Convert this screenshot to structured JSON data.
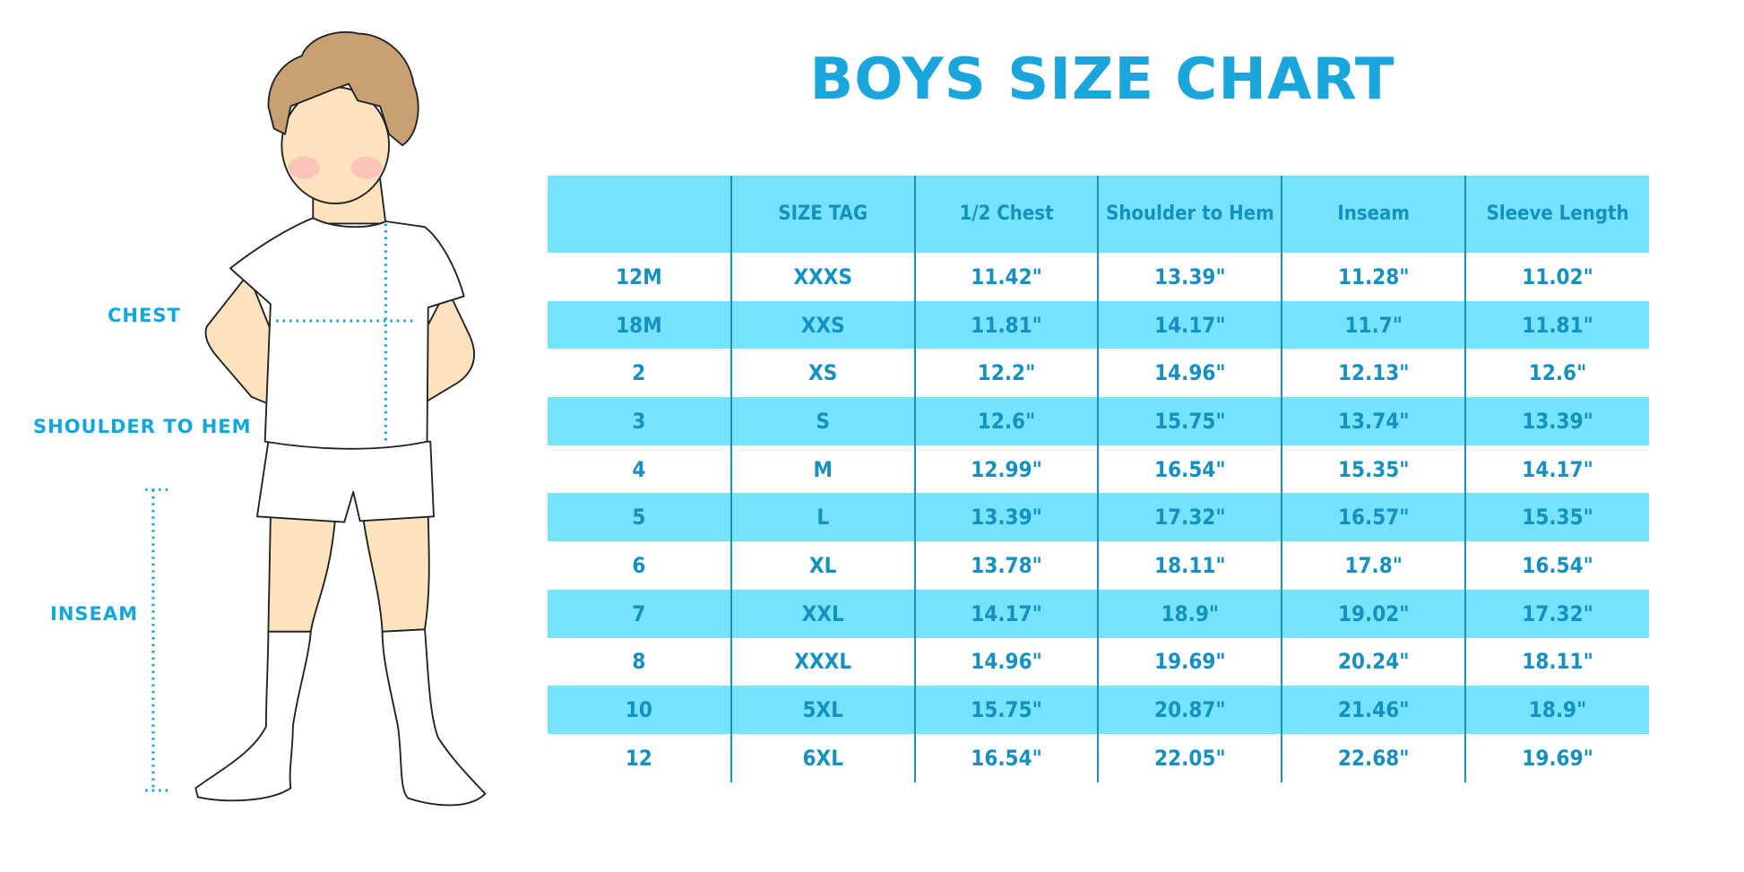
{
  "title": "BOYS SIZE CHART",
  "measure_labels": {
    "chest": "CHEST",
    "shoulder_to_hem": "SHOULDER TO HEM",
    "inseam": "INSEAM"
  },
  "colors": {
    "accent": "#1aa6dc",
    "stripe": "#76e3fd",
    "text": "#1590bf",
    "divider": "#1a8fc0",
    "hair": "#c8a074",
    "skin": "#fde3bd"
  },
  "chart_data": {
    "type": "table",
    "title": "BOYS SIZE CHART",
    "columns": [
      "",
      "SIZE TAG",
      "1/2 Chest",
      "Shoulder to Hem",
      "Inseam",
      "Sleeve Length"
    ],
    "rows": [
      [
        "12M",
        "XXXS",
        "11.42\"",
        "13.39\"",
        "11.28\"",
        "11.02\""
      ],
      [
        "18M",
        "XXS",
        "11.81\"",
        "14.17\"",
        "11.7\"",
        "11.81\""
      ],
      [
        "2",
        "XS",
        "12.2\"",
        "14.96\"",
        "12.13\"",
        "12.6\""
      ],
      [
        "3",
        "S",
        "12.6\"",
        "15.75\"",
        "13.74\"",
        "13.39\""
      ],
      [
        "4",
        "M",
        "12.99\"",
        "16.54\"",
        "15.35\"",
        "14.17\""
      ],
      [
        "5",
        "L",
        "13.39\"",
        "17.32\"",
        "16.57\"",
        "15.35\""
      ],
      [
        "6",
        "XL",
        "13.78\"",
        "18.11\"",
        "17.8\"",
        "16.54\""
      ],
      [
        "7",
        "XXL",
        "14.17\"",
        "18.9\"",
        "19.02\"",
        "17.32\""
      ],
      [
        "8",
        "XXXL",
        "14.96\"",
        "19.69\"",
        "20.24\"",
        "18.11\""
      ],
      [
        "10",
        "5XL",
        "15.75\"",
        "20.87\"",
        "21.46\"",
        "18.9\""
      ],
      [
        "12",
        "6XL",
        "16.54\"",
        "22.05\"",
        "22.68\"",
        "19.69\""
      ]
    ]
  }
}
